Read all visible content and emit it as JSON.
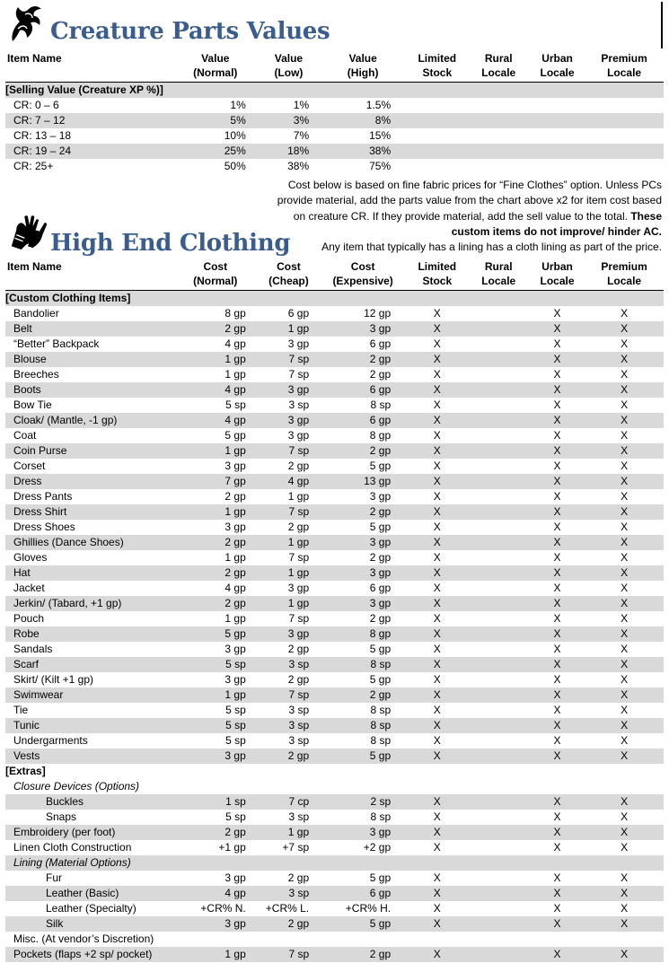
{
  "creature": {
    "title": "Creature Parts Values",
    "headers": [
      "Item Name",
      "Value\n(Normal)",
      "Value\n(Low)",
      "Value\n(High)",
      "Limited\nStock",
      "Rural\nLocale",
      "Urban\nLocale",
      "Premium\nLocale"
    ],
    "section": "[Selling Value (Creature XP %)]",
    "rows": [
      [
        "CR: 0 – 6",
        "1%",
        "1%",
        "1.5%"
      ],
      [
        "CR: 7 – 12",
        "5%",
        "3%",
        "8%"
      ],
      [
        "CR: 13 – 18",
        "10%",
        "7%",
        "15%"
      ],
      [
        "CR: 19 – 24",
        "25%",
        "18%",
        "38%"
      ],
      [
        "CR: 25+",
        "50%",
        "38%",
        "75%"
      ]
    ]
  },
  "note": {
    "text": "Cost below is based on fine fabric prices for “Fine Clothes” option. Unless PCs provide material, add the parts value from the chart above x2 for item cost based on creature CR. If they provide material, add the sell value to the total. ",
    "bold": "These custom items do not improve/ hinder AC.",
    "tail": "Any item that typically has a lining has a cloth lining as part of the price."
  },
  "clothing": {
    "title": "High End Clothing",
    "headers": [
      "Item Name",
      "Cost\n(Normal)",
      "Cost\n(Cheap)",
      "Cost\n(Expensive)",
      "Limited\nStock",
      "Rural\nLocale",
      "Urban\nLocale",
      "Premium\nLocale"
    ],
    "section1": "[Custom Clothing Items]",
    "items": [
      [
        "Bandolier",
        "8 gp",
        "6 gp",
        "12 gp",
        "X",
        "",
        "X",
        "X"
      ],
      [
        "Belt",
        "2 gp",
        "1 gp",
        "3 gp",
        "X",
        "",
        "X",
        "X"
      ],
      [
        "“Better” Backpack",
        "4 gp",
        "3 gp",
        "6 gp",
        "X",
        "",
        "X",
        "X"
      ],
      [
        "Blouse",
        "1 gp",
        "7 sp",
        "2 gp",
        "X",
        "",
        "X",
        "X"
      ],
      [
        "Breeches",
        "1 gp",
        "7 sp",
        "2 gp",
        "X",
        "",
        "X",
        "X"
      ],
      [
        "Boots",
        "4 gp",
        "3 gp",
        "6 gp",
        "X",
        "",
        "X",
        "X"
      ],
      [
        "Bow Tie",
        "5 sp",
        "3 sp",
        "8 sp",
        "X",
        "",
        "X",
        "X"
      ],
      [
        "Cloak/ (Mantle, -1 gp)",
        "4 gp",
        "3 gp",
        "6 gp",
        "X",
        "",
        "X",
        "X"
      ],
      [
        "Coat",
        "5 gp",
        "3 gp",
        "8 gp",
        "X",
        "",
        "X",
        "X"
      ],
      [
        "Coin Purse",
        "1 gp",
        "7 sp",
        "2 gp",
        "X",
        "",
        "X",
        "X"
      ],
      [
        "Corset",
        "3 gp",
        "2 gp",
        "5 gp",
        "X",
        "",
        "X",
        "X"
      ],
      [
        "Dress",
        "7 gp",
        "4 gp",
        "13 gp",
        "X",
        "",
        "X",
        "X"
      ],
      [
        "Dress Pants",
        "2 gp",
        "1 gp",
        "3 gp",
        "X",
        "",
        "X",
        "X"
      ],
      [
        "Dress Shirt",
        "1 gp",
        "7 sp",
        "2 gp",
        "X",
        "",
        "X",
        "X"
      ],
      [
        "Dress Shoes",
        "3 gp",
        "2 gp",
        "5 gp",
        "X",
        "",
        "X",
        "X"
      ],
      [
        "Ghillies (Dance Shoes)",
        "2 gp",
        "1 gp",
        "3 gp",
        "X",
        "",
        "X",
        "X"
      ],
      [
        "Gloves",
        "1 gp",
        "7 sp",
        "2 gp",
        "X",
        "",
        "X",
        "X"
      ],
      [
        "Hat",
        "2 gp",
        "1 gp",
        "3 gp",
        "X",
        "",
        "X",
        "X"
      ],
      [
        "Jacket",
        "4 gp",
        "3 gp",
        "6 gp",
        "X",
        "",
        "X",
        "X"
      ],
      [
        "Jerkin/ (Tabard, +1 gp)",
        "2 gp",
        "1 gp",
        "3 gp",
        "X",
        "",
        "X",
        "X"
      ],
      [
        "Pouch",
        "1 gp",
        "7 sp",
        "2 gp",
        "X",
        "",
        "X",
        "X"
      ],
      [
        "Robe",
        "5 gp",
        "3 gp",
        "8 gp",
        "X",
        "",
        "X",
        "X"
      ],
      [
        "Sandals",
        "3 gp",
        "2 gp",
        "5 gp",
        "X",
        "",
        "X",
        "X"
      ],
      [
        "Scarf",
        "5 sp",
        "3 sp",
        "8 sp",
        "X",
        "",
        "X",
        "X"
      ],
      [
        "Skirt/ (Kilt +1 gp)",
        "3 gp",
        "2 gp",
        "5 gp",
        "X",
        "",
        "X",
        "X"
      ],
      [
        "Swimwear",
        "1 gp",
        "7 sp",
        "2 gp",
        "X",
        "",
        "X",
        "X"
      ],
      [
        "Tie",
        "5 sp",
        "3 sp",
        "8 sp",
        "X",
        "",
        "X",
        "X"
      ],
      [
        "Tunic",
        "5 sp",
        "3 sp",
        "8 sp",
        "X",
        "",
        "X",
        "X"
      ],
      [
        "Undergarments",
        "5 sp",
        "3 sp",
        "8 sp",
        "X",
        "",
        "X",
        "X"
      ],
      [
        "Vests",
        "3 gp",
        "2 gp",
        "5 gp",
        "X",
        "",
        "X",
        "X"
      ]
    ],
    "section2": "[Extras]",
    "extras": [
      {
        "kind": "sub",
        "cells": [
          "Closure Devices (Options)",
          "",
          "",
          "",
          "",
          "",
          "",
          ""
        ]
      },
      {
        "kind": "ind2",
        "cells": [
          "Buckles",
          "1 sp",
          "7 cp",
          "2 sp",
          "X",
          "",
          "X",
          "X"
        ]
      },
      {
        "kind": "ind2",
        "cells": [
          "Snaps",
          "5 sp",
          "3 sp",
          "8 sp",
          "X",
          "",
          "X",
          "X"
        ]
      },
      {
        "kind": "ind0",
        "cells": [
          "Embroidery (per foot)",
          "2 gp",
          "1 gp",
          "3 gp",
          "X",
          "",
          "X",
          "X"
        ]
      },
      {
        "kind": "ind0",
        "cells": [
          "Linen Cloth Construction",
          "+1 gp",
          "+7 sp",
          "+2 gp",
          "X",
          "",
          "X",
          "X"
        ]
      },
      {
        "kind": "sub",
        "cells": [
          "Lining (Material Options)",
          "",
          "",
          "",
          "",
          "",
          "",
          ""
        ]
      },
      {
        "kind": "ind2",
        "cells": [
          "Fur",
          "3 gp",
          "2 gp",
          "5 gp",
          "X",
          "",
          "X",
          "X"
        ]
      },
      {
        "kind": "ind2",
        "cells": [
          "Leather (Basic)",
          "4 gp",
          "3 sp",
          "6 gp",
          "X",
          "",
          "X",
          "X"
        ]
      },
      {
        "kind": "ind2",
        "cells": [
          "Leather (Specialty)",
          "+CR% N.",
          "+CR% L.",
          "+CR% H.",
          "X",
          "",
          "X",
          "X"
        ]
      },
      {
        "kind": "ind2",
        "cells": [
          "Silk",
          "3 gp",
          "2 gp",
          "5 gp",
          "X",
          "",
          "X",
          "X"
        ]
      },
      {
        "kind": "ind0",
        "cells": [
          "Misc. (At vendor’s Discretion)",
          "",
          "",
          "",
          "",
          "",
          "",
          ""
        ]
      },
      {
        "kind": "ind0",
        "cells": [
          "Pockets (flaps +2 sp/ pocket)",
          "1 gp",
          "7 sp",
          "2 gp",
          "X",
          "",
          "X",
          "X"
        ]
      }
    ]
  },
  "icons": {
    "creature": "dragon-head-icon",
    "clothing": "gloves-icon"
  },
  "colors": {
    "title": "#3a5c8e",
    "stripe": "#d9d9d9"
  }
}
